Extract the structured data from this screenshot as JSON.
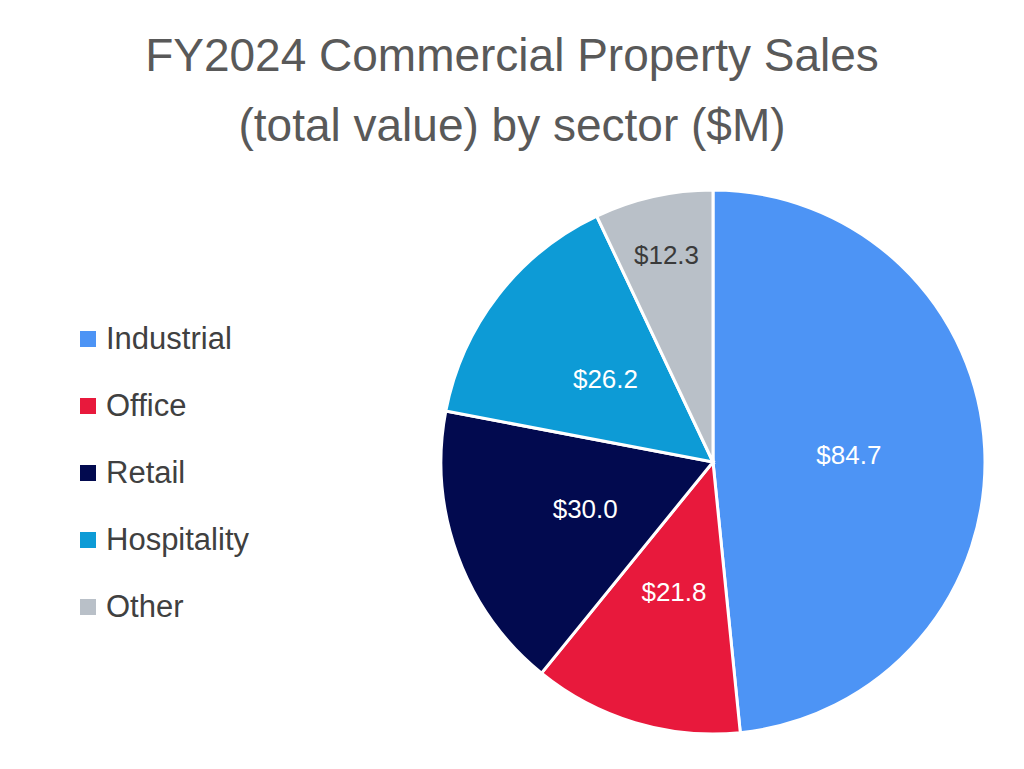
{
  "chart_data": {
    "type": "pie",
    "title": "FY2024 Commercial Property Sales\n(total value) by sector ($M)",
    "categories": [
      "Industrial",
      "Office",
      "Retail",
      "Hospitality",
      "Other"
    ],
    "values": [
      84.7,
      21.8,
      30,
      26.2,
      12.3
    ],
    "value_labels": [
      "$84.7",
      "$21.8",
      "$30.0",
      "$26.2",
      "$12.3"
    ],
    "colors": [
      "#4d94f5",
      "#e8193c",
      "#020a4f",
      "#0d9bd6",
      "#b9c0c8"
    ],
    "data_labels": true,
    "legend": "left"
  }
}
